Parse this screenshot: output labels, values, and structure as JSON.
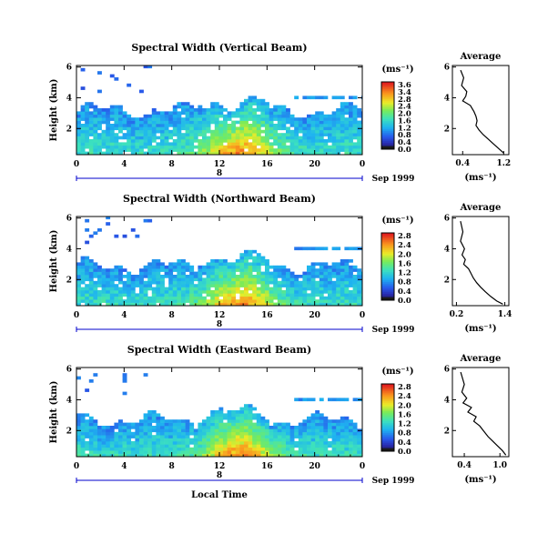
{
  "figure": {
    "date_label": "Sep 1999",
    "xlabel": "Local Time",
    "ylabel": "Height (km)",
    "colorbar_unit": "(ms⁻¹)",
    "avg_title": "Average",
    "avg_xlabel": "(ms⁻¹)",
    "time_ticks": [
      "0",
      "4",
      "8",
      "12",
      "16",
      "20",
      "0"
    ],
    "height_ticks": [
      "2",
      "4",
      "6"
    ],
    "day_marker": "8"
  },
  "chart_data": [
    {
      "type": "heatmap",
      "title": "Spectral Width (Vertical Beam)",
      "xlabel": "Local Time",
      "ylabel": "Height (km)",
      "x_range": [
        0,
        24
      ],
      "y_range": [
        0.3,
        6.1
      ],
      "colorbar": {
        "label": "(ms⁻¹)",
        "range": [
          0.0,
          3.6
        ],
        "ticks": [
          "3.6",
          "3.4",
          "2.8",
          "2.4",
          "2.0",
          "1.6",
          "1.2",
          "0.8",
          "0.4",
          "0.0"
        ]
      },
      "cloud_top_km": 3.1,
      "upper_layer_km": 4.0
    },
    {
      "type": "heatmap",
      "title": "Spectral Width (Northward Beam)",
      "xlabel": "Local Time",
      "ylabel": "Height (km)",
      "x_range": [
        0,
        24
      ],
      "y_range": [
        0.3,
        6.1
      ],
      "colorbar": {
        "label": "(ms⁻¹)",
        "range": [
          0.0,
          2.8
        ],
        "ticks": [
          "2.8",
          "2.4",
          "2.0",
          "1.6",
          "1.2",
          "0.8",
          "0.4",
          "0.0"
        ]
      },
      "cloud_top_km": 2.8,
      "upper_layer_km": 3.9
    },
    {
      "type": "heatmap",
      "title": "Spectral Width (Eastward Beam)",
      "xlabel": "Local Time",
      "ylabel": "Height (km)",
      "x_range": [
        0,
        24
      ],
      "y_range": [
        0.3,
        6.1
      ],
      "colorbar": {
        "label": "(ms⁻¹)",
        "range": [
          0.0,
          2.8
        ],
        "ticks": [
          "2.8",
          "2.4",
          "2.0",
          "1.6",
          "1.2",
          "0.8",
          "0.4",
          "0.0"
        ]
      },
      "cloud_top_km": 2.6,
      "upper_layer_km": 4.0
    },
    {
      "type": "line",
      "title": "Average",
      "xlabel": "(ms⁻¹)",
      "xlim": [
        0.2,
        1.3
      ],
      "xticks": [
        "0.4",
        "1.2"
      ],
      "ylim": [
        0.3,
        6.1
      ],
      "yticks": [
        "2",
        "4",
        "6"
      ],
      "x": [
        0.36,
        0.42,
        0.38,
        0.48,
        0.46,
        0.4,
        0.55,
        0.62,
        0.66,
        0.68,
        0.66,
        0.72,
        0.8,
        0.9,
        1.0,
        1.1,
        1.2
      ],
      "y": [
        5.8,
        5.3,
        4.8,
        4.4,
        4.1,
        3.8,
        3.5,
        3.1,
        2.8,
        2.5,
        2.2,
        1.9,
        1.6,
        1.3,
        1.0,
        0.7,
        0.4
      ]
    },
    {
      "type": "line",
      "title": "Average",
      "xlabel": "(ms⁻¹)",
      "xlim": [
        0.1,
        1.5
      ],
      "xticks": [
        "0.2",
        "1.4"
      ],
      "ylim": [
        0.3,
        6.1
      ],
      "yticks": [
        "2",
        "4",
        "6"
      ],
      "x": [
        0.3,
        0.36,
        0.3,
        0.4,
        0.34,
        0.42,
        0.38,
        0.5,
        0.56,
        0.62,
        0.7,
        0.8,
        0.92,
        1.05,
        1.2,
        1.35
      ],
      "y": [
        5.8,
        5.1,
        4.5,
        4.0,
        3.6,
        3.3,
        3.0,
        2.7,
        2.4,
        2.1,
        1.8,
        1.5,
        1.2,
        0.9,
        0.6,
        0.4
      ]
    },
    {
      "type": "line",
      "title": "Average",
      "xlabel": "(ms⁻¹)",
      "xlim": [
        0.2,
        1.15
      ],
      "xticks": [
        "0.4",
        "1.0"
      ],
      "ylim": [
        0.3,
        6.1
      ],
      "yticks": [
        "2",
        "4",
        "6"
      ],
      "x": [
        0.34,
        0.4,
        0.36,
        0.44,
        0.38,
        0.52,
        0.46,
        0.6,
        0.56,
        0.66,
        0.72,
        0.8,
        0.88,
        0.96,
        1.04,
        1.1
      ],
      "y": [
        5.8,
        5.0,
        4.5,
        4.1,
        3.8,
        3.5,
        3.2,
        2.9,
        2.6,
        2.3,
        2.0,
        1.6,
        1.3,
        1.0,
        0.7,
        0.4
      ]
    }
  ]
}
